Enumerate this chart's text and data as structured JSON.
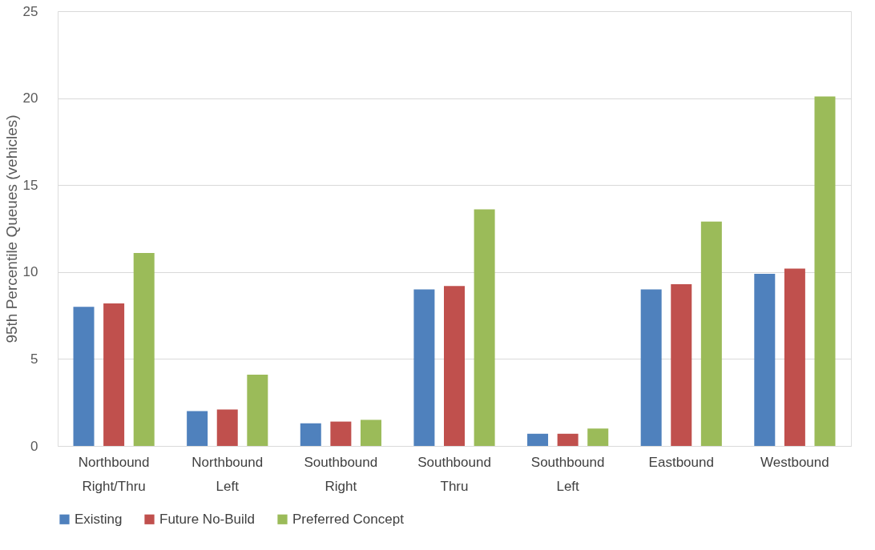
{
  "chart_data": {
    "type": "bar",
    "ylabel": "95th Percentile Queues (vehicles)",
    "categories": [
      "Northbound Right/Thru",
      "Northbound Left",
      "Southbound Right",
      "Southbound Thru",
      "Southbound Left",
      "Eastbound",
      "Westbound"
    ],
    "series": [
      {
        "name": "Existing",
        "color": "#4f81bd",
        "values": [
          8.0,
          2.0,
          1.3,
          9.0,
          0.7,
          9.0,
          9.9
        ]
      },
      {
        "name": "Future No-Build",
        "color": "#c0504d",
        "values": [
          8.2,
          2.1,
          1.4,
          9.2,
          0.7,
          9.3,
          10.2
        ]
      },
      {
        "name": "Preferred Concept",
        "color": "#9bbb59",
        "values": [
          11.1,
          4.1,
          1.5,
          13.6,
          1.0,
          12.9,
          20.1
        ]
      }
    ],
    "ylim": [
      0,
      25
    ],
    "yticks": [
      0,
      5,
      10,
      15,
      20,
      25
    ],
    "grid": "y",
    "legend": "bottom"
  }
}
